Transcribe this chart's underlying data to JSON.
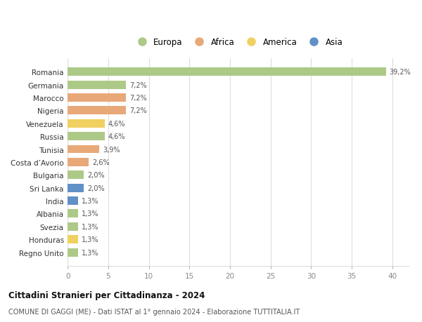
{
  "countries": [
    "Romania",
    "Germania",
    "Marocco",
    "Nigeria",
    "Venezuela",
    "Russia",
    "Tunisia",
    "Costa d’Avorio",
    "Bulgaria",
    "Sri Lanka",
    "India",
    "Albania",
    "Svezia",
    "Honduras",
    "Regno Unito"
  ],
  "values": [
    39.2,
    7.2,
    7.2,
    7.2,
    4.6,
    4.6,
    3.9,
    2.6,
    2.0,
    2.0,
    1.3,
    1.3,
    1.3,
    1.3,
    1.3
  ],
  "continents": [
    "Europa",
    "Europa",
    "Africa",
    "Africa",
    "America",
    "Europa",
    "Africa",
    "Africa",
    "Europa",
    "Asia",
    "Asia",
    "Europa",
    "Europa",
    "America",
    "Europa"
  ],
  "colors": {
    "Europa": "#adc988",
    "Africa": "#e8a878",
    "America": "#f0d060",
    "Asia": "#6090c8"
  },
  "legend_order": [
    "Europa",
    "Africa",
    "America",
    "Asia"
  ],
  "title": "Cittadini Stranieri per Cittadinanza - 2024",
  "subtitle": "COMUNE DI GAGGI (ME) - Dati ISTAT al 1° gennaio 2024 - Elaborazione TUTTITALIA.IT",
  "xlabel_ticks": [
    0,
    5,
    10,
    15,
    20,
    25,
    30,
    35,
    40
  ],
  "xlim": [
    0,
    42
  ],
  "background_color": "#ffffff",
  "grid_color": "#dddddd",
  "bar_height": 0.65,
  "figsize": [
    6.0,
    4.6
  ],
  "dpi": 100
}
